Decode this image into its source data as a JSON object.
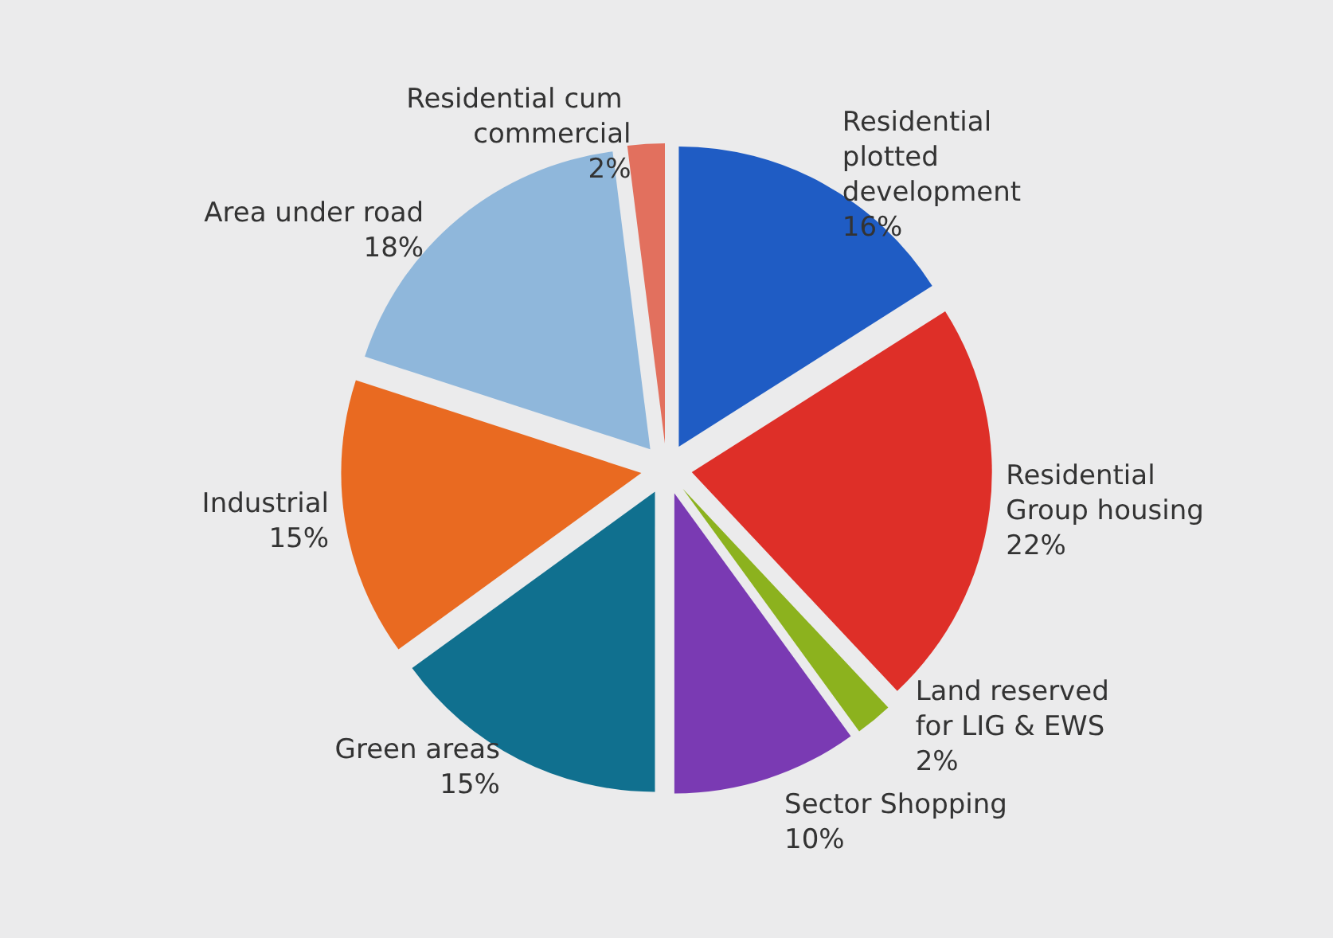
{
  "chart_data": {
    "type": "pie",
    "categories": [
      "Residential plotted development",
      "Residential Group housing",
      "Land reserved for LIG & EWS",
      "Sector Shopping",
      "Green areas",
      "Industrial",
      "Area under road",
      "Residential cum commercial"
    ],
    "values": [
      16,
      22,
      2,
      10,
      15,
      15,
      18,
      2
    ],
    "value_labels": [
      "16%",
      "22%",
      "2%",
      "10%",
      "15%",
      "15%",
      "18%",
      "2%"
    ],
    "colors": [
      "#1f5cc4",
      "#de2f28",
      "#8cb21e",
      "#7a3ab3",
      "#10708f",
      "#e96a21",
      "#8fb7db",
      "#e2705e"
    ],
    "legend": false
  }
}
